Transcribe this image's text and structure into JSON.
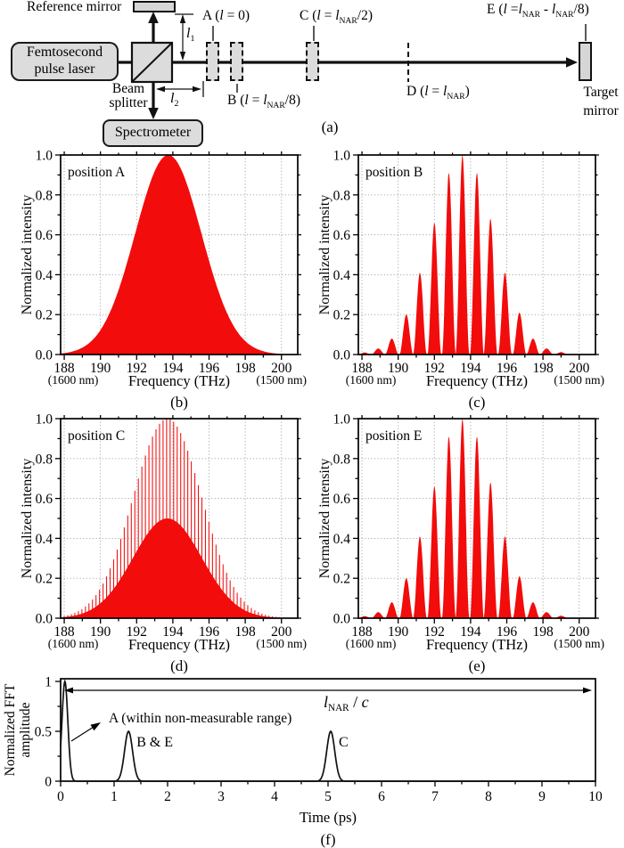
{
  "colors": {
    "spectrum_red": "#f20c0c",
    "line_black": "#111111",
    "grid_gray": "#8f8f8f",
    "box_fill": "#dcdcdc",
    "frame_black": "#000000"
  },
  "diagram": {
    "caption": "(a)",
    "labels": {
      "reference_mirror": "Reference mirror",
      "laser_line1": "Femtosecond",
      "laser_line2": "pulse laser",
      "beam_splitter_line1": "Beam",
      "beam_splitter_line2": "splitter",
      "spectrometer": "Spectrometer",
      "target_line1": "Target",
      "target_line2": "mirror",
      "pos_a": "A (*l* = 0)",
      "pos_b": "B (*l* = *l*_NAR_/8)",
      "pos_c": "C (*l* = *l*_NAR_/2)",
      "pos_d": "D (*l* = *l*_NAR_)",
      "pos_e": "E (*l* =*l*_NAR_ - *l*_NAR_/8)",
      "l1": "*l*_1_",
      "l2": "*l*_2_"
    }
  },
  "chart_data": [
    {
      "id": "b",
      "type": "area",
      "caption": "(b)",
      "title": "position A",
      "xlabel": "Frequency (THz)",
      "ylabel": "Normalized intensity",
      "x_sub_left": "(1600 nm)",
      "x_sub_right": "(1500 nm)",
      "xlim": [
        187.8,
        200.9
      ],
      "ylim": [
        0,
        1
      ],
      "xticks": [
        188,
        190,
        192,
        194,
        196,
        198,
        200
      ],
      "yticks": [
        0,
        0.2,
        0.4,
        0.6,
        0.8,
        1
      ],
      "ytick_labels": [
        "0.0",
        "0.2",
        "0.4",
        "0.6",
        "0.8",
        "1.0"
      ],
      "grid": true,
      "envelope": {
        "shape": "gaussian",
        "center_THz": 193.75,
        "sigma_THz": 1.83,
        "peak": 1.0
      }
    },
    {
      "id": "c",
      "type": "area",
      "caption": "(c)",
      "title": "position B",
      "xlabel": "Frequency (THz)",
      "ylabel": "Normalized intensity",
      "x_sub_left": "(1600 nm)",
      "x_sub_right": "(1500 nm)",
      "xlim": [
        187.8,
        200.9
      ],
      "ylim": [
        0,
        1
      ],
      "xticks": [
        188,
        190,
        192,
        194,
        196,
        198,
        200
      ],
      "yticks": [
        0,
        0.2,
        0.4,
        0.6,
        0.8,
        1
      ],
      "ytick_labels": [
        "0.0",
        "0.2",
        "0.4",
        "0.6",
        "0.8",
        "1.0"
      ],
      "grid": true,
      "fringes": {
        "period_THz": 0.77
      },
      "fringe_peaks": [
        [
          188.15,
          0.01
        ],
        [
          188.9,
          0.03
        ],
        [
          189.65,
          0.08
        ],
        [
          190.45,
          0.2
        ],
        [
          191.2,
          0.41
        ],
        [
          192.0,
          0.66
        ],
        [
          192.8,
          0.91
        ],
        [
          193.55,
          1.0
        ],
        [
          194.35,
          0.91
        ],
        [
          195.1,
          0.68
        ],
        [
          195.9,
          0.41
        ],
        [
          196.7,
          0.21
        ],
        [
          197.45,
          0.08
        ],
        [
          198.2,
          0.03
        ],
        [
          199.0,
          0.012
        ]
      ]
    },
    {
      "id": "d",
      "type": "area",
      "caption": "(d)",
      "title": "position C",
      "xlabel": "Frequency (THz)",
      "ylabel": "Normalized intensity",
      "x_sub_left": "(1600 nm)",
      "x_sub_right": "(1500 nm)",
      "xlim": [
        187.8,
        200.9
      ],
      "ylim": [
        0,
        1
      ],
      "xticks": [
        188,
        190,
        192,
        194,
        196,
        198,
        200
      ],
      "yticks": [
        0,
        0.2,
        0.4,
        0.6,
        0.8,
        1
      ],
      "ytick_labels": [
        "0.0",
        "0.2",
        "0.4",
        "0.6",
        "0.8",
        "1.0"
      ],
      "grid": true,
      "envelope": {
        "shape": "gaussian",
        "center_THz": 193.7,
        "sigma_THz": 1.9,
        "peak": 1.0
      },
      "fringes": {
        "period_THz": 0.195
      },
      "unresolved_base_fraction": 0.5
    },
    {
      "id": "e",
      "type": "area",
      "caption": "(e)",
      "title": "position E",
      "xlabel": "Frequency (THz)",
      "ylabel": "Normalized intensity",
      "x_sub_left": "(1600 nm)",
      "x_sub_right": "(1500 nm)",
      "xlim": [
        187.8,
        200.9
      ],
      "ylim": [
        0,
        1
      ],
      "xticks": [
        188,
        190,
        192,
        194,
        196,
        198,
        200
      ],
      "yticks": [
        0,
        0.2,
        0.4,
        0.6,
        0.8,
        1
      ],
      "ytick_labels": [
        "0.0",
        "0.2",
        "0.4",
        "0.6",
        "0.8",
        "1.0"
      ],
      "grid": true,
      "fringes": {
        "period_THz": 0.77
      },
      "fringe_peaks": [
        [
          188.15,
          0.01
        ],
        [
          188.9,
          0.03
        ],
        [
          189.65,
          0.08
        ],
        [
          190.45,
          0.2
        ],
        [
          191.2,
          0.41
        ],
        [
          192.0,
          0.66
        ],
        [
          192.8,
          0.91
        ],
        [
          193.55,
          1.0
        ],
        [
          194.35,
          0.91
        ],
        [
          195.1,
          0.68
        ],
        [
          195.9,
          0.41
        ],
        [
          196.7,
          0.21
        ],
        [
          197.45,
          0.08
        ],
        [
          198.2,
          0.03
        ],
        [
          199.0,
          0.012
        ]
      ]
    },
    {
      "id": "f",
      "type": "line",
      "caption": "(f)",
      "xlabel": "Time (ps)",
      "ylabel_lines": [
        "Normalized FFT",
        "amplitude"
      ],
      "xlim": [
        0,
        10
      ],
      "ylim": [
        0,
        1.03
      ],
      "xticks": [
        0,
        1,
        2,
        3,
        4,
        5,
        6,
        7,
        8,
        9,
        10
      ],
      "yticks": [
        0,
        0.5,
        1
      ],
      "ytick_labels": [
        "0",
        "0.5",
        "1"
      ],
      "grid": false,
      "peaks": [
        {
          "label": "A",
          "t_ps": 0.08,
          "amplitude": 1.0,
          "sigma_ps": 0.055
        },
        {
          "label": "B & E",
          "t_ps": 1.27,
          "amplitude": 0.5,
          "sigma_ps": 0.075
        },
        {
          "label": "C",
          "t_ps": 5.05,
          "amplitude": 0.5,
          "sigma_ps": 0.075
        }
      ],
      "annotation": "A (within non-measurable range)",
      "span_label": "*l*_NAR_ / *c*"
    }
  ]
}
